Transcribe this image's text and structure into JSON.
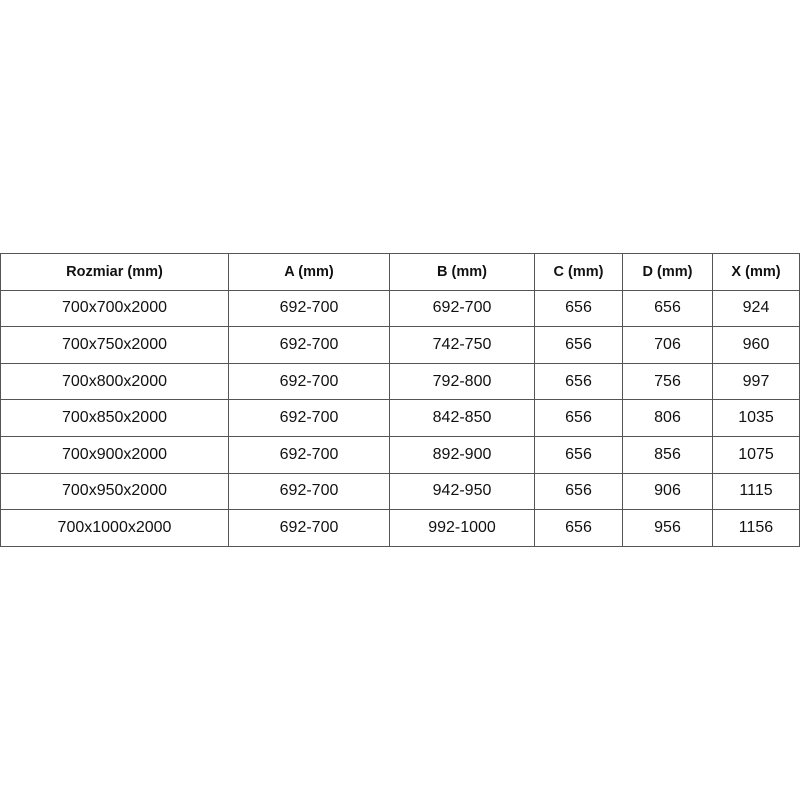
{
  "table": {
    "headers": [
      "Rozmiar (mm)",
      "A (mm)",
      "B (mm)",
      "C (mm)",
      "D (mm)",
      "X (mm)"
    ],
    "rows": [
      [
        "700x700x2000",
        "692-700",
        "692-700",
        "656",
        "656",
        "924"
      ],
      [
        "700x750x2000",
        "692-700",
        "742-750",
        "656",
        "706",
        "960"
      ],
      [
        "700x800x2000",
        "692-700",
        "792-800",
        "656",
        "756",
        "997"
      ],
      [
        "700x850x2000",
        "692-700",
        "842-850",
        "656",
        "806",
        "1035"
      ],
      [
        "700x900x2000",
        "692-700",
        "892-900",
        "656",
        "856",
        "1075"
      ],
      [
        "700x950x2000",
        "692-700",
        "942-950",
        "656",
        "906",
        "1115"
      ],
      [
        "700x1000x2000",
        "692-700",
        "992-1000",
        "656",
        "956",
        "1156"
      ]
    ]
  }
}
